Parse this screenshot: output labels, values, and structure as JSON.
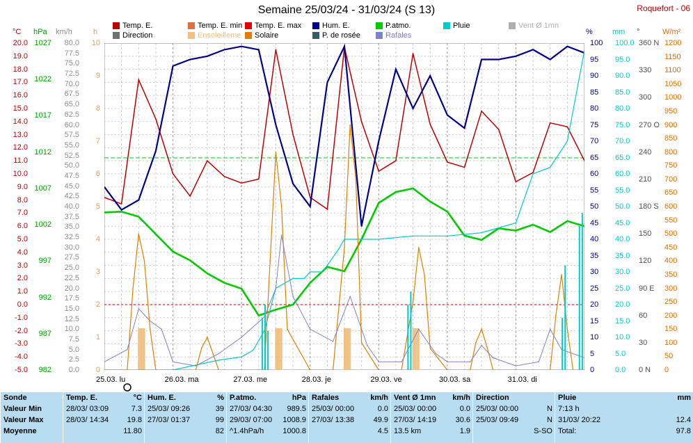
{
  "header": {
    "title": "Semaine 25/03/24 - 31/03/24 (S 13)",
    "station": "Roquefort - 06"
  },
  "legend": [
    {
      "label": "Temp. E.",
      "color": "#c00000"
    },
    {
      "label": "Temp. E. min",
      "color": "#e07040"
    },
    {
      "label": "Temp. E. max",
      "color": "#e00000"
    },
    {
      "label": "Hum. E.",
      "color": "#000090"
    },
    {
      "label": "P.atmo.",
      "color": "#00cc00"
    },
    {
      "label": "Pluie",
      "color": "#00cccc"
    },
    {
      "label": "Vent Ø 1mn",
      "color": "#b0b0b0"
    },
    {
      "label": "Direction",
      "color": "#707070"
    },
    {
      "label": "Ensoleilleme",
      "color": "#f0c080"
    },
    {
      "label": "Solaire",
      "color": "#e08000"
    },
    {
      "label": "P. de rosée",
      "color": "#306060"
    },
    {
      "label": "Rafales",
      "color": "#8080d0"
    }
  ],
  "axes": {
    "units": {
      "temp": "°C",
      "press": "hPa",
      "wind": "km/h",
      "sun": "h",
      "hum": "%",
      "rain": "mm",
      "dir": "°",
      "solar": "W/m²"
    },
    "temp_ticks": [
      "20.0",
      "19.0",
      "18.0",
      "17.0",
      "16.0",
      "15.0",
      "14.0",
      "13.0",
      "12.0",
      "11.0",
      "10.0",
      "9.0",
      "8.0",
      "7.0",
      "6.0",
      "5.0",
      "4.0",
      "3.0",
      "2.0",
      "1.0",
      "0.0",
      "-1.0",
      "-2.0",
      "-3.0",
      "-4.0",
      "-5.0"
    ],
    "press_ticks": [
      "1027",
      "1022",
      "1017",
      "1012",
      "1007",
      "1002",
      "997",
      "992",
      "987",
      "982"
    ],
    "wind_ticks": [
      "80.0",
      "77.5",
      "75.0",
      "72.5",
      "70.0",
      "67.5",
      "65.0",
      "62.5",
      "60.0",
      "57.5",
      "55.0",
      "52.5",
      "50.0",
      "47.5",
      "45.0",
      "42.5",
      "40.0",
      "37.5",
      "35.0",
      "32.5",
      "30.0",
      "27.5",
      "25.0",
      "22.5",
      "20.0",
      "17.5",
      "15.0",
      "12.5",
      "10.0",
      "7.5",
      "5.0",
      "2.5",
      "0.0"
    ],
    "sun_ticks": [
      "10",
      "9",
      "8",
      "7",
      "6",
      "5",
      "4",
      "3",
      "2",
      "1",
      "0"
    ],
    "hum_ticks": [
      "100",
      "95",
      "90",
      "85",
      "80",
      "75",
      "70",
      "65",
      "60",
      "55",
      "50",
      "45",
      "40",
      "35",
      "30",
      "25",
      "20",
      "15",
      "10",
      "5",
      "0"
    ],
    "rain_ticks": [
      "100.0",
      "95.0",
      "90.0",
      "85.0",
      "80.0",
      "75.0",
      "70.0",
      "65.0",
      "60.0",
      "55.0",
      "50.0",
      "45.0",
      "40.0",
      "35.0",
      "30.0",
      "25.0",
      "20.0",
      "15.0",
      "10.0",
      "5.0",
      "0.0"
    ],
    "dir_ticks": [
      "360 N",
      "330",
      "300",
      "270 O",
      "240",
      "210",
      "180 S",
      "150",
      "120",
      "90 E",
      "60",
      "30",
      "0 N"
    ],
    "solar_ticks": [
      "1200",
      "1150",
      "1100",
      "1050",
      "1000",
      "950",
      "900",
      "850",
      "800",
      "750",
      "700",
      "650",
      "600",
      "550",
      "500",
      "450",
      "400",
      "350",
      "300",
      "250",
      "200",
      "150",
      "100",
      "50",
      "0"
    ],
    "x_labels": [
      "25.03. lu",
      "26.03. ma",
      "27.03. me",
      "28.03. je",
      "29.03. ve",
      "30.03. sa",
      "31.03. di"
    ]
  },
  "chart_data": {
    "type": "line",
    "x_unit": "hours since 25/03 00:00",
    "series": [
      {
        "name": "Temp. E.",
        "unit": "°C",
        "x": [
          0,
          6,
          12,
          18,
          24,
          30,
          36,
          42,
          48,
          54,
          60,
          66,
          72,
          78,
          84,
          90,
          96,
          102,
          108,
          114,
          120,
          126,
          132,
          138,
          144,
          150,
          156,
          162,
          168
        ],
        "values": [
          8.2,
          7.7,
          17.2,
          14.2,
          10.0,
          8.3,
          11.0,
          9.8,
          9.3,
          9.6,
          19.5,
          13.0,
          8.2,
          7.3,
          19.7,
          14.0,
          10.2,
          11.0,
          19.2,
          13.8,
          10.9,
          10.5,
          14.8,
          13.4,
          9.4,
          10.1,
          13.9,
          13.6,
          11.0
        ]
      },
      {
        "name": "Hum. E.",
        "unit": "%",
        "x": [
          0,
          6,
          12,
          18,
          24,
          30,
          36,
          42,
          48,
          54,
          60,
          66,
          72,
          78,
          84,
          90,
          96,
          102,
          108,
          114,
          120,
          126,
          132,
          138,
          144,
          150,
          156,
          162,
          168
        ],
        "values": [
          56,
          49,
          52,
          67,
          93,
          95,
          96,
          98,
          99,
          98,
          75,
          57,
          50,
          88,
          99,
          44,
          70,
          92,
          80,
          90,
          78,
          74,
          95,
          95,
          96,
          98,
          95,
          99,
          97
        ]
      },
      {
        "name": "P.atmo.",
        "unit": "hPa",
        "x": [
          0,
          6,
          12,
          18,
          24,
          30,
          36,
          42,
          48,
          54,
          60,
          66,
          72,
          78,
          84,
          90,
          96,
          102,
          108,
          114,
          120,
          126,
          132,
          138,
          144,
          150,
          156,
          162,
          168
        ],
        "values": [
          1003.7,
          1003.8,
          1003.1,
          1000.7,
          998.3,
          997.1,
          995.3,
          994.0,
          993.2,
          989.5,
          990.3,
          991.0,
          994.0,
          996.2,
          995.6,
          1000.0,
          1005.0,
          1006.5,
          1007.0,
          1005.2,
          1003.8,
          1000.5,
          999.9,
          1001.5,
          1001.2,
          1002.0,
          1001.0,
          1002.5,
          1001.8
        ]
      },
      {
        "name": "Pluie",
        "unit": "mm",
        "x": [
          0,
          24,
          40,
          48,
          52,
          56,
          60,
          66,
          70,
          72,
          76,
          78,
          82,
          84,
          96,
          108,
          120,
          132,
          144,
          150,
          156,
          162,
          168
        ],
        "values": [
          0,
          0,
          3,
          4,
          6,
          12,
          25,
          28,
          28,
          30,
          30,
          32,
          37,
          40,
          40,
          41,
          41,
          42,
          45,
          60,
          62,
          70,
          97.8
        ]
      },
      {
        "name": "Solaire",
        "unit": "W/m²",
        "x": [
          0,
          8,
          10,
          12,
          14,
          16,
          18,
          24,
          32,
          34,
          36,
          38,
          40,
          48,
          56,
          58,
          60,
          62,
          64,
          72,
          80,
          84,
          86,
          88,
          90,
          96,
          104,
          108,
          110,
          112,
          114,
          120,
          128,
          130,
          132,
          134,
          136,
          144,
          156,
          158,
          160,
          162,
          164,
          168
        ],
        "values": [
          0,
          0,
          300,
          500,
          400,
          150,
          0,
          0,
          0,
          80,
          120,
          60,
          0,
          0,
          0,
          400,
          800,
          600,
          150,
          0,
          0,
          450,
          900,
          700,
          100,
          0,
          0,
          250,
          450,
          350,
          80,
          0,
          0,
          100,
          150,
          80,
          0,
          0,
          0,
          200,
          350,
          150,
          0,
          0
        ]
      },
      {
        "name": "Rafales",
        "unit": "km/h",
        "x": [
          0,
          8,
          12,
          16,
          20,
          24,
          32,
          40,
          48,
          56,
          60,
          62,
          66,
          72,
          80,
          86,
          92,
          96,
          104,
          110,
          116,
          120,
          128,
          132,
          136,
          144,
          152,
          156,
          160,
          168
        ],
        "values": [
          2,
          5,
          15,
          12,
          10,
          2,
          1,
          4,
          8,
          13,
          20,
          33,
          18,
          10,
          7,
          18,
          6,
          2,
          2,
          10,
          4,
          2,
          2,
          6,
          3,
          1,
          2,
          10,
          5,
          3
        ]
      }
    ],
    "ylim_temp": [
      -5,
      20
    ],
    "ylim_hum": [
      0,
      100
    ],
    "ylim_press": [
      982,
      1027
    ]
  },
  "summary": {
    "columns": [
      {
        "header": "Sonde",
        "unit": "",
        "rows": [
          "Valeur Min",
          "Valeur Max",
          "Moyenne"
        ]
      },
      {
        "header": "Temp. E.",
        "unit": "°C",
        "rows": [
          [
            "28/03/ 03:09",
            "7.3"
          ],
          [
            "28/03/ 14:34",
            "19.8"
          ],
          [
            "",
            "11.80"
          ]
        ]
      },
      {
        "header": "Hum. E.",
        "unit": "%",
        "rows": [
          [
            "25/03/ 09:26",
            "39"
          ],
          [
            "27/03/ 01:37",
            "99"
          ],
          [
            "",
            "82"
          ]
        ]
      },
      {
        "header": "P.atmo.",
        "unit": "hPa",
        "rows": [
          [
            "27/03/ 04:30",
            "989.5"
          ],
          [
            "29/03/ 07:00",
            "1008.9"
          ],
          [
            "^1.4hPa/h",
            "1000.8"
          ]
        ]
      },
      {
        "header": "Rafales",
        "unit": "km/h",
        "rows": [
          [
            "25/03/ 00:00",
            "0.0"
          ],
          [
            "27/03/ 13:38",
            "49.9"
          ],
          [
            "",
            "4.5"
          ]
        ]
      },
      {
        "header": "Vent Ø 1mn",
        "unit": "km/h",
        "rows": [
          [
            "25/03/ 00:00",
            "0.0"
          ],
          [
            "27/03/ 14:19",
            "30.6"
          ],
          [
            "13.5 km",
            "1.9"
          ]
        ]
      },
      {
        "header": "Direction",
        "unit": "",
        "rows": [
          [
            "25/03/ 00:00",
            "N"
          ],
          [
            "25/03/ 09:49",
            "N"
          ],
          [
            "",
            "S-SO"
          ]
        ]
      },
      {
        "header": "Pluie",
        "unit": "mm",
        "rows": [
          [
            "7:13 h",
            ""
          ],
          [
            "31/03/ 20:22",
            "12.4"
          ],
          [
            "Total:",
            "97.8"
          ]
        ]
      }
    ]
  }
}
